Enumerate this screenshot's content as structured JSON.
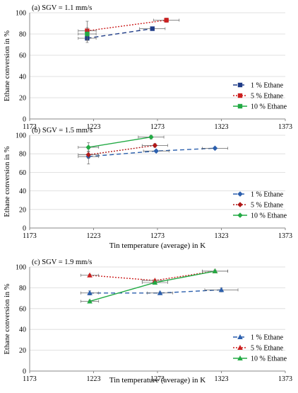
{
  "chart_data": [
    {
      "type": "scatter",
      "title": "(a) SGV = 1.1 mm/s",
      "xlabel": "",
      "ylabel": "Ethane conversion in %",
      "xlim": [
        1173,
        1373
      ],
      "ylim": [
        0,
        100
      ],
      "xticks": [
        "1173",
        "1223",
        "1273",
        "1323",
        "1373"
      ],
      "yticks": [
        "0",
        "20",
        "40",
        "60",
        "80",
        "100"
      ],
      "legend_position": "bottom-right",
      "series": [
        {
          "name": "1 % Ethane",
          "color": "#1f3c88",
          "marker": "square",
          "line": "dash",
          "points": [
            {
              "x": 1218,
              "y": 76,
              "xerr": 7,
              "yerr": 4
            },
            {
              "x": 1269,
              "y": 85,
              "xerr": 10,
              "yerr": 1
            }
          ]
        },
        {
          "name": "5 % Ethane",
          "color": "#cc1f1f",
          "marker": "square",
          "line": "dot",
          "points": [
            {
              "x": 1218,
              "y": 83,
              "xerr": 7,
              "yerr": 9
            },
            {
              "x": 1280,
              "y": 93,
              "xerr": 10,
              "yerr": 2
            }
          ]
        },
        {
          "name": "10 % Ethane",
          "color": "#22aa44",
          "marker": "square",
          "line": "solid",
          "points": [
            {
              "x": 1218,
              "y": 80,
              "xerr": 7,
              "yerr": 6
            }
          ]
        }
      ]
    },
    {
      "type": "scatter",
      "title": "(b) SGV = 1.5 mm/s",
      "xlabel": "Tin temperature (average) in K",
      "ylabel": "Ethane conversion in %",
      "xlim": [
        1173,
        1373
      ],
      "ylim": [
        0,
        100
      ],
      "xticks": [
        "1173",
        "1223",
        "1273",
        "1323",
        "1373"
      ],
      "yticks": [
        "0",
        "20",
        "40",
        "60",
        "80",
        "100"
      ],
      "legend_position": "bottom-right",
      "series": [
        {
          "name": "1 % Ethane",
          "color": "#2b5fad",
          "marker": "diamond",
          "line": "dash",
          "points": [
            {
              "x": 1219,
              "y": 77,
              "xerr": 8,
              "yerr": 8
            },
            {
              "x": 1272,
              "y": 83,
              "xerr": 10,
              "yerr": 1
            },
            {
              "x": 1318,
              "y": 86,
              "xerr": 10,
              "yerr": 1
            }
          ]
        },
        {
          "name": "5 % Ethane",
          "color": "#b01818",
          "marker": "diamond",
          "line": "dot",
          "points": [
            {
              "x": 1219,
              "y": 79,
              "xerr": 8,
              "yerr": 4
            },
            {
              "x": 1271,
              "y": 89,
              "xerr": 10,
              "yerr": 2
            }
          ]
        },
        {
          "name": "10 % Ethane",
          "color": "#22aa44",
          "marker": "diamond",
          "line": "solid",
          "points": [
            {
              "x": 1219,
              "y": 87,
              "xerr": 8,
              "yerr": 5
            },
            {
              "x": 1268,
              "y": 98,
              "xerr": 10,
              "yerr": 2
            }
          ]
        }
      ]
    },
    {
      "type": "scatter",
      "title": "(c) SGV = 1.9 mm/s",
      "xlabel": "Tin temperature (average) in K",
      "ylabel": "Ethane conversion in %",
      "xlim": [
        1173,
        1373
      ],
      "ylim": [
        0,
        100
      ],
      "xticks": [
        "1173",
        "1223",
        "1273",
        "1323",
        "1373"
      ],
      "yticks": [
        "0",
        "20",
        "40",
        "60",
        "80",
        "100"
      ],
      "legend_position": "bottom-right",
      "series": [
        {
          "name": "1 % Ethane",
          "color": "#2b5fad",
          "marker": "triangle",
          "line": "dash",
          "points": [
            {
              "x": 1220,
              "y": 75,
              "xerr": 7,
              "yerr": 2
            },
            {
              "x": 1275,
              "y": 75,
              "xerr": 10,
              "yerr": 1
            },
            {
              "x": 1323,
              "y": 78,
              "xerr": 13,
              "yerr": 2
            }
          ]
        },
        {
          "name": "5 % Ethane",
          "color": "#cc1f1f",
          "marker": "triangle",
          "line": "dot",
          "points": [
            {
              "x": 1220,
              "y": 92,
              "xerr": 7,
              "yerr": 1
            },
            {
              "x": 1271,
              "y": 87,
              "xerr": 10,
              "yerr": 1
            },
            {
              "x": 1318,
              "y": 96,
              "xerr": 10,
              "yerr": 1
            }
          ]
        },
        {
          "name": "10 % Ethane",
          "color": "#22aa44",
          "marker": "triangle",
          "line": "solid",
          "points": [
            {
              "x": 1220,
              "y": 67,
              "xerr": 7,
              "yerr": 1
            },
            {
              "x": 1271,
              "y": 85,
              "xerr": 10,
              "yerr": 1
            },
            {
              "x": 1318,
              "y": 96,
              "xerr": 10,
              "yerr": 1
            }
          ]
        }
      ]
    }
  ]
}
